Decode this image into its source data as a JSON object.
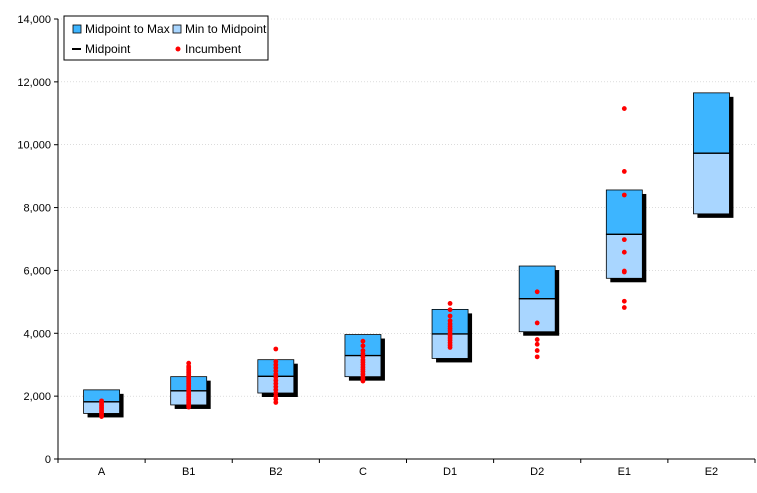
{
  "chart_data": {
    "type": "floating-bar",
    "title": "",
    "xlabel": "",
    "ylabel": "",
    "ylim": [
      0,
      14000
    ],
    "yticks": [
      0,
      2000,
      4000,
      6000,
      8000,
      10000,
      12000,
      14000
    ],
    "ytick_labels": [
      "0",
      "2,000",
      "4,000",
      "6,000",
      "8,000",
      "10,000",
      "12,000",
      "14,000"
    ],
    "grid": true,
    "legend_position": "top-left",
    "legend": {
      "midpoint_to_max": "Midpoint to Max",
      "min_to_midpoint": "Min to Midpoint",
      "midpoint": "Midpoint",
      "incumbent": "Incumbent"
    },
    "colors": {
      "midpoint_to_max": "#3db5ff",
      "min_to_midpoint": "#a9d6ff",
      "midpoint": "#000000",
      "incumbent": "#ff0000",
      "shadow": "#000000"
    },
    "categories": [
      "A",
      "B1",
      "B2",
      "C",
      "D1",
      "D2",
      "E1",
      "E2"
    ],
    "ranges": [
      {
        "min": 1450,
        "mid": 1820,
        "max": 2200
      },
      {
        "min": 1720,
        "mid": 2170,
        "max": 2620
      },
      {
        "min": 2100,
        "mid": 2630,
        "max": 3160
      },
      {
        "min": 2620,
        "mid": 3290,
        "max": 3960
      },
      {
        "min": 3200,
        "mid": 3980,
        "max": 4760
      },
      {
        "min": 4050,
        "mid": 5100,
        "max": 6140
      },
      {
        "min": 5750,
        "mid": 7150,
        "max": 8560
      },
      {
        "min": 7800,
        "mid": 9730,
        "max": 11650
      }
    ],
    "incumbents": [
      [
        1350,
        1400,
        1450,
        1500,
        1550,
        1600,
        1650,
        1700,
        1750,
        1800,
        1850
      ],
      [
        1650,
        1700,
        1750,
        1800,
        1850,
        1900,
        1950,
        2000,
        2050,
        2100,
        2150,
        2200,
        2250,
        2300,
        2350,
        2400,
        2450,
        2500,
        2550,
        2600,
        2650,
        2700,
        2750,
        2800,
        2850,
        2900,
        2950,
        3050
      ],
      [
        1800,
        1900,
        2000,
        2100,
        2200,
        2300,
        2400,
        2500,
        2600,
        2700,
        2800,
        2900,
        3000,
        3100,
        3500
      ],
      [
        2480,
        2550,
        2620,
        2700,
        2780,
        2850,
        2920,
        3000,
        3080,
        3150,
        3250,
        3350,
        3450,
        3600,
        3750
      ],
      [
        3550,
        3620,
        3700,
        3780,
        3850,
        3920,
        4000,
        4080,
        4150,
        4220,
        4300,
        4400,
        4550,
        4750,
        4950
      ],
      [
        3250,
        3450,
        3650,
        3800,
        4330,
        5320
      ],
      [
        4820,
        5020,
        5950,
        5980,
        6580,
        6980,
        8400,
        9150,
        11150
      ],
      []
    ]
  }
}
